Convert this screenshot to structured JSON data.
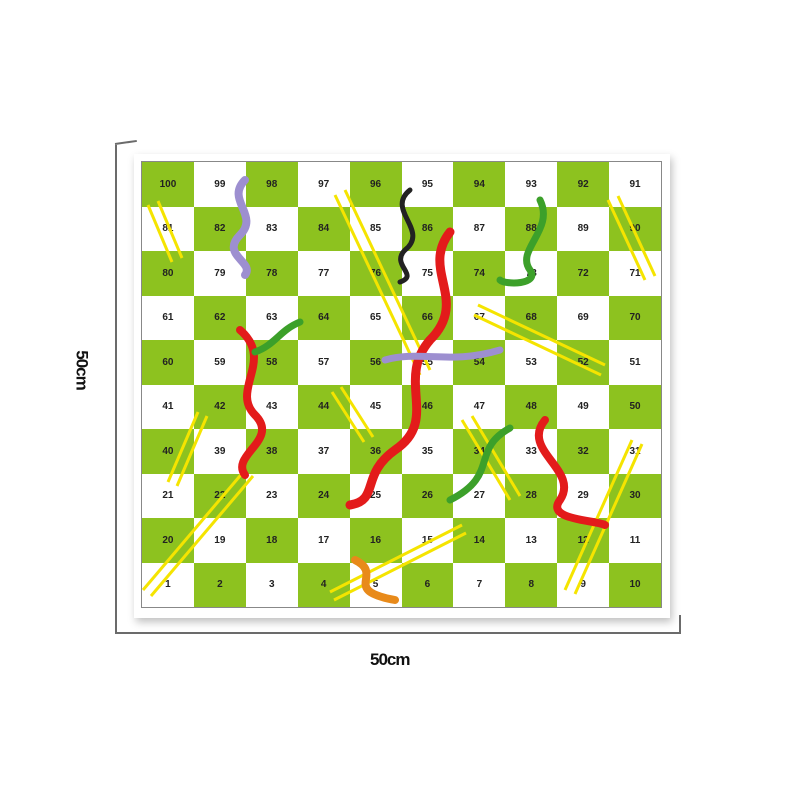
{
  "dimensions": {
    "height_label": "50cm",
    "width_label": "50cm"
  },
  "board": {
    "colors": {
      "green": "#8dc21f",
      "white": "#ffffff",
      "ladder": "#f5e400",
      "snake_red": "#e31b1b"
    },
    "rows": [
      [
        100,
        99,
        98,
        97,
        96,
        95,
        94,
        93,
        92,
        91
      ],
      [
        81,
        82,
        83,
        84,
        85,
        86,
        87,
        88,
        89,
        90
      ],
      [
        80,
        79,
        78,
        77,
        76,
        75,
        74,
        73,
        72,
        71
      ],
      [
        61,
        62,
        63,
        64,
        65,
        66,
        67,
        68,
        69,
        70
      ],
      [
        60,
        59,
        58,
        57,
        56,
        55,
        54,
        53,
        52,
        51
      ],
      [
        41,
        42,
        43,
        44,
        45,
        46,
        47,
        48,
        49,
        50
      ],
      [
        40,
        39,
        38,
        37,
        36,
        35,
        34,
        33,
        32,
        31
      ],
      [
        21,
        22,
        23,
        24,
        25,
        26,
        27,
        28,
        29,
        30
      ],
      [
        20,
        19,
        18,
        17,
        16,
        15,
        14,
        13,
        12,
        11
      ],
      [
        1,
        2,
        3,
        4,
        5,
        6,
        7,
        8,
        9,
        10
      ]
    ]
  }
}
